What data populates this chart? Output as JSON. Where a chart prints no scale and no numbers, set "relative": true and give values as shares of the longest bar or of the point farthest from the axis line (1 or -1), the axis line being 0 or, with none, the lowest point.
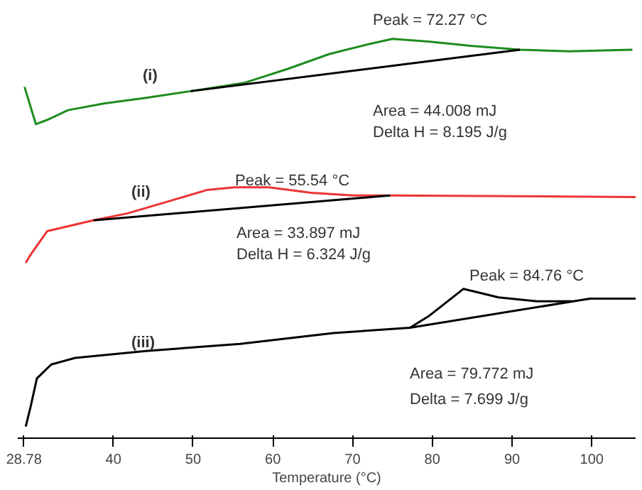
{
  "chart_data": {
    "type": "line",
    "relative": true,
    "xlabel": "Temperature (°C)",
    "xlim": [
      28,
      105.5
    ],
    "xticks": [
      28.78,
      40,
      50,
      60,
      70,
      80,
      90,
      100
    ],
    "grid": false,
    "marker": "none",
    "line_style": "solid",
    "tick_labels": "x",
    "series": [
      {
        "color": "#1e8c1e",
        "x": [
          28.85,
          30.27,
          31.7,
          34.3,
          38.8,
          44.1,
          49.7,
          56.5,
          61.8,
          67.1,
          72.0,
          75.0,
          79.5,
          84.8,
          91.0,
          97.2,
          105.1
        ],
        "values": [
          0.876,
          0.78,
          0.791,
          0.816,
          0.833,
          0.848,
          0.865,
          0.887,
          0.922,
          0.961,
          0.986,
          1.0,
          0.993,
          0.982,
          0.972,
          0.968,
          0.972
        ]
      },
      {
        "color": "#000000",
        "x": [
          49.7,
          91.0
        ],
        "values": [
          0.865,
          0.972
        ]
      },
      {
        "color": "#ee3333",
        "x": [
          29.0,
          29.6,
          31.7,
          35.2,
          37.5,
          41.8,
          47.1,
          51.7,
          55.2,
          59.5,
          64.8,
          70.1,
          74.7,
          105.5
        ],
        "values": [
          0.422,
          0.443,
          0.504,
          0.521,
          0.532,
          0.55,
          0.582,
          0.61,
          0.617,
          0.617,
          0.603,
          0.596,
          0.596,
          0.592
        ]
      },
      {
        "color": "#000000",
        "x": [
          37.5,
          74.7
        ],
        "values": [
          0.532,
          0.596
        ]
      },
      {
        "color": "#000000",
        "x": [
          29.0,
          29.6,
          30.4,
          32.2,
          35.2,
          44.1,
          55.9,
          67.6,
          77.2,
          79.5,
          83.9,
          88.3,
          93.1,
          97.7,
          99.8,
          105.5
        ],
        "values": [
          0.0,
          0.05,
          0.124,
          0.16,
          0.177,
          0.195,
          0.213,
          0.241,
          0.255,
          0.284,
          0.355,
          0.333,
          0.323,
          0.323,
          0.33,
          0.33
        ]
      },
      {
        "color": "#000000",
        "x": [
          77.2,
          97.7
        ],
        "values": [
          0.255,
          0.323
        ]
      }
    ],
    "annotations": [
      "Peak = 72.27 °C",
      "(i)",
      "Area = 44.008 mJ",
      "Delta H = 8.195 J/g",
      "(ii)",
      "Peak = 55.54 °C",
      "Area = 33.897 mJ",
      "Delta H = 6.324 J/g",
      "Peak = 84.76 °C",
      "(iii)",
      "Area = 79.772 mJ",
      "Delta = 7.699 J/g"
    ]
  }
}
